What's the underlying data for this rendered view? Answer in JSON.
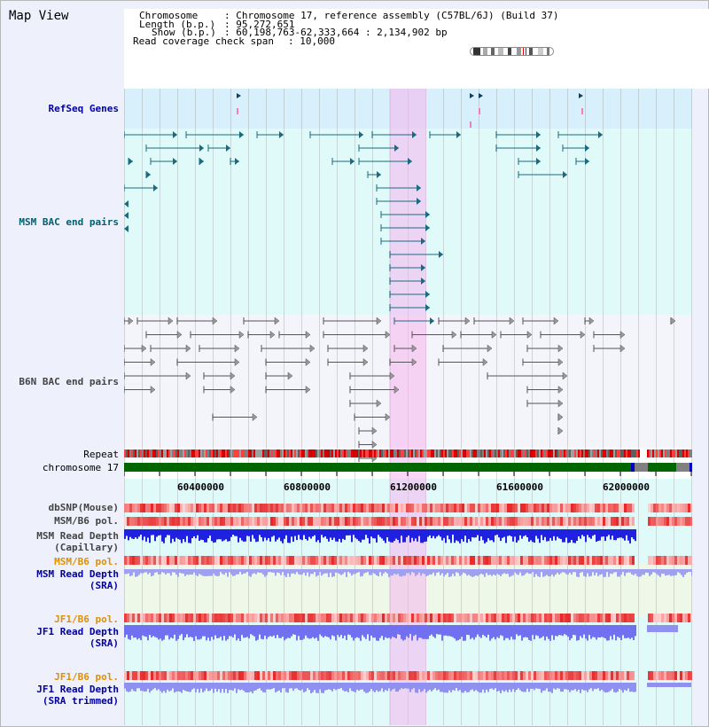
{
  "app_title": "Map View",
  "info": {
    "chromosome_label": "Chromosome",
    "chromosome_value": ": Chromosome 17, reference assembly (C57BL/6J) (Build 37)",
    "length_label": "Length (b.p.)",
    "length_value": ": 95,272,651",
    "show_label": "Show (b.p.)",
    "show_value": ": 60,198,763-62,333,664 : 2,134,902 bp",
    "span_label": "Read coverage check span",
    "span_value": ": 10,000"
  },
  "tracks": {
    "refseq": "RefSeq Genes",
    "msm_bac": "MSM BAC end pairs",
    "b6n_bac": "B6N BAC end pairs",
    "repeat": "Repeat",
    "chromosome": "chromosome 17",
    "dbsnp": "dbSNP(Mouse)",
    "msm_b6_pol_1": "MSM/B6 pol.",
    "msm_read_depth_cap": "MSM Read Depth\n(Capillary)",
    "msm_b6_pol_2": "MSM/B6 pol.",
    "msm_read_depth_sra": "MSM Read Depth\n(SRA)",
    "jf1_b6_pol_1": "JF1/B6 pol.",
    "jf1_read_depth_sra": "JF1 Read Depth\n(SRA)",
    "jf1_b6_pol_2": "JF1/B6 pol.",
    "jf1_read_depth_trimmed": "JF1 Read Depth\n(SRA trimmed)"
  },
  "colors": {
    "refseq_bg": "#d8f0fb",
    "bac_bg": "#e0fafa",
    "b6n_bg": "#f4f4fb",
    "label_blue": "#0000a0",
    "label_teal": "#006070",
    "label_orange": "#e09000",
    "highlight": "#f6b4ee",
    "chromosome_bar": "#006600"
  },
  "axis": {
    "ticks": [
      "60400000",
      "60800000",
      "61200000",
      "61600000",
      "62000000"
    ]
  }
}
